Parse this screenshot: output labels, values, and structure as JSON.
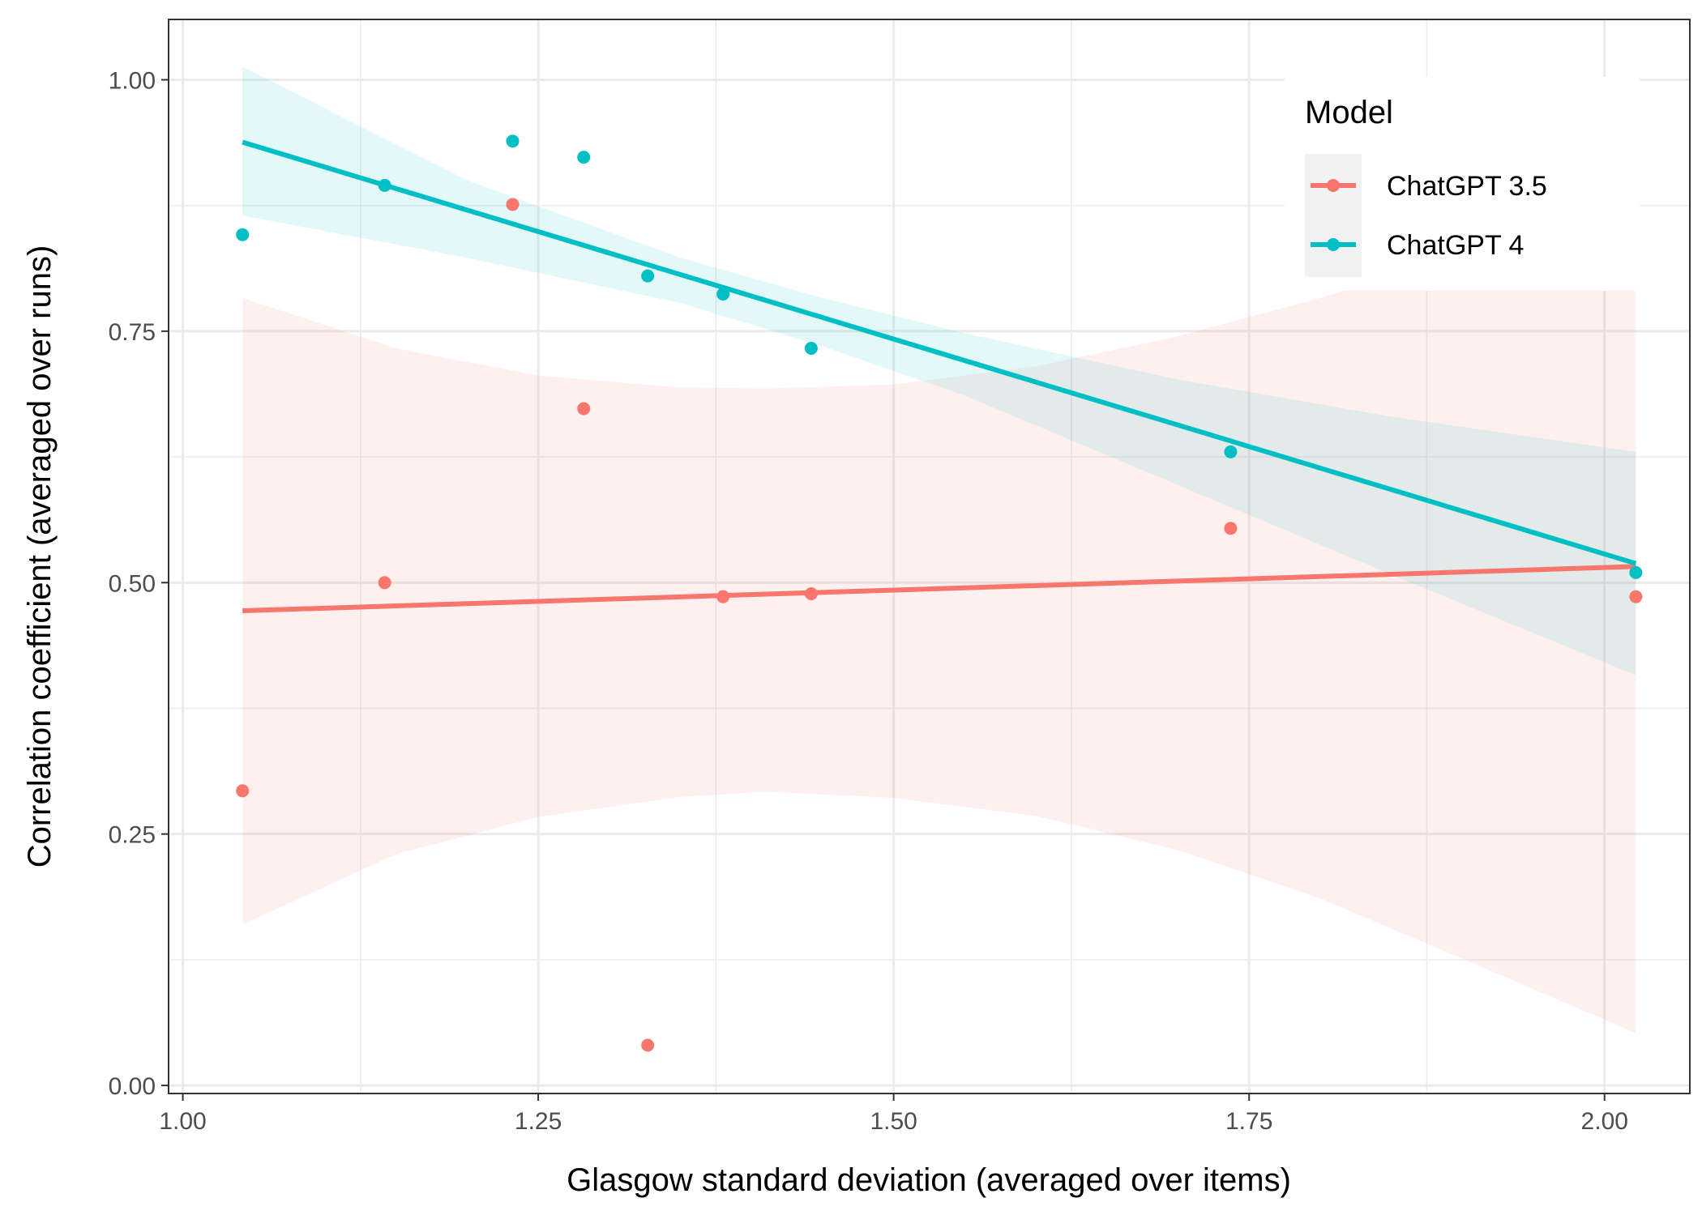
{
  "chart_data": {
    "type": "scatter",
    "xlabel": "Glasgow standard deviation (averaged over items)",
    "ylabel": "Correlation coefficient (averaged over runs)",
    "xlim": [
      0.99,
      2.06
    ],
    "ylim": [
      -0.008,
      1.06
    ],
    "x_ticks": [
      1.0,
      1.25,
      1.5,
      1.75,
      2.0
    ],
    "x_tick_labels": [
      "1.00",
      "1.25",
      "1.50",
      "1.75",
      "2.00"
    ],
    "y_ticks": [
      0.0,
      0.25,
      0.5,
      0.75,
      1.0
    ],
    "y_tick_labels": [
      "0.00",
      "0.25",
      "0.50",
      "0.75",
      "1.00"
    ],
    "grid": true,
    "legend": {
      "title": "Model",
      "position": "top-right"
    },
    "series": [
      {
        "name": "ChatGPT 3.5",
        "color": "#F8766D",
        "points": [
          {
            "x": 1.042,
            "y": 0.293
          },
          {
            "x": 1.142,
            "y": 0.5
          },
          {
            "x": 1.232,
            "y": 0.876
          },
          {
            "x": 1.282,
            "y": 0.673
          },
          {
            "x": 1.327,
            "y": 0.04
          },
          {
            "x": 1.38,
            "y": 0.486
          },
          {
            "x": 1.442,
            "y": 0.489
          },
          {
            "x": 1.737,
            "y": 0.554
          },
          {
            "x": 2.022,
            "y": 0.486
          }
        ],
        "fit": {
          "x": [
            1.042,
            2.022
          ],
          "y": [
            0.472,
            0.516
          ]
        },
        "band": {
          "x": [
            1.042,
            1.15,
            1.25,
            1.35,
            1.41,
            1.5,
            1.6,
            1.7,
            1.8,
            1.9,
            2.022
          ],
          "upper": [
            0.783,
            0.733,
            0.706,
            0.694,
            0.693,
            0.697,
            0.715,
            0.745,
            0.783,
            0.826,
            0.88
          ],
          "lower": [
            0.16,
            0.23,
            0.267,
            0.287,
            0.292,
            0.286,
            0.268,
            0.234,
            0.186,
            0.126,
            0.052
          ]
        }
      },
      {
        "name": "ChatGPT 4",
        "color": "#00BFC4",
        "points": [
          {
            "x": 1.042,
            "y": 0.846
          },
          {
            "x": 1.142,
            "y": 0.895
          },
          {
            "x": 1.232,
            "y": 0.939
          },
          {
            "x": 1.282,
            "y": 0.923
          },
          {
            "x": 1.327,
            "y": 0.805
          },
          {
            "x": 1.38,
            "y": 0.787
          },
          {
            "x": 1.442,
            "y": 0.733
          },
          {
            "x": 1.737,
            "y": 0.63
          },
          {
            "x": 2.022,
            "y": 0.51
          }
        ],
        "fit": {
          "x": [
            1.042,
            2.022
          ],
          "y": [
            0.938,
            0.519
          ]
        },
        "band": {
          "x": [
            1.042,
            1.2,
            1.35,
            1.45,
            1.55,
            1.7,
            1.85,
            2.022
          ],
          "upper": [
            1.013,
            0.9,
            0.823,
            0.783,
            0.748,
            0.702,
            0.665,
            0.63
          ],
          "lower": [
            0.865,
            0.823,
            0.778,
            0.735,
            0.686,
            0.597,
            0.508,
            0.408
          ]
        }
      }
    ]
  }
}
